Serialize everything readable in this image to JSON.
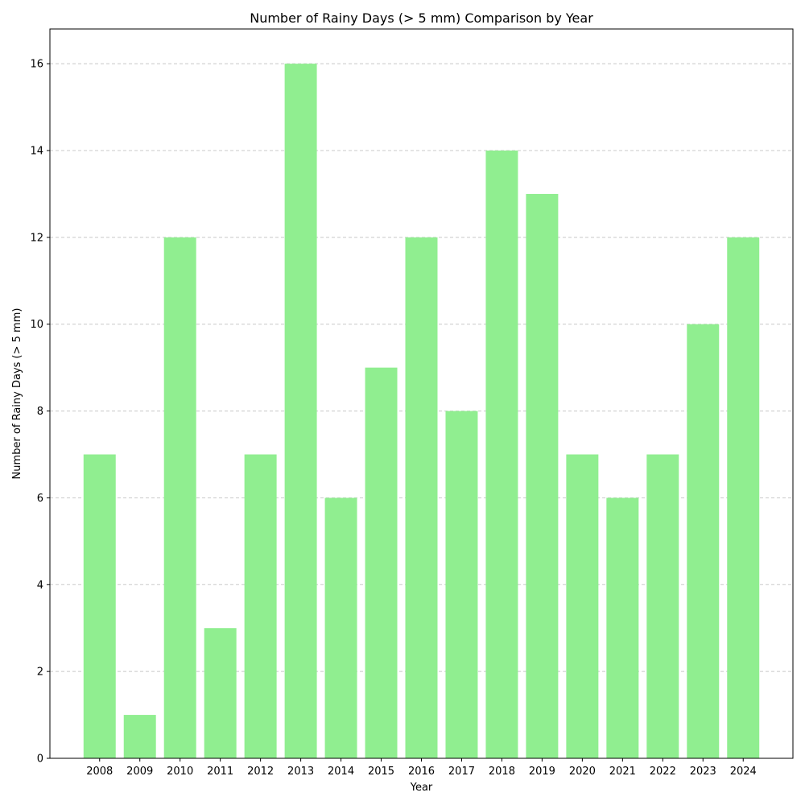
{
  "chart_data": {
    "type": "bar",
    "title": "Number of Rainy Days (> 5 mm) Comparison by Year",
    "xlabel": "Year",
    "ylabel": "Number of Rainy Days (> 5 mm)",
    "categories": [
      "2008",
      "2009",
      "2010",
      "2011",
      "2012",
      "2013",
      "2014",
      "2015",
      "2016",
      "2017",
      "2018",
      "2019",
      "2020",
      "2021",
      "2022",
      "2023",
      "2024"
    ],
    "values": [
      7,
      1,
      12,
      3,
      7,
      16,
      6,
      9,
      12,
      8,
      14,
      13,
      7,
      6,
      7,
      10,
      12
    ],
    "ylim": [
      0,
      16.8
    ],
    "yticks": [
      0,
      2,
      4,
      6,
      8,
      10,
      12,
      14,
      16
    ],
    "grid": "horizontal dashed",
    "colors": {
      "bar": "#90ee90",
      "grid": "#c8c8c8",
      "axis": "#000000"
    }
  }
}
